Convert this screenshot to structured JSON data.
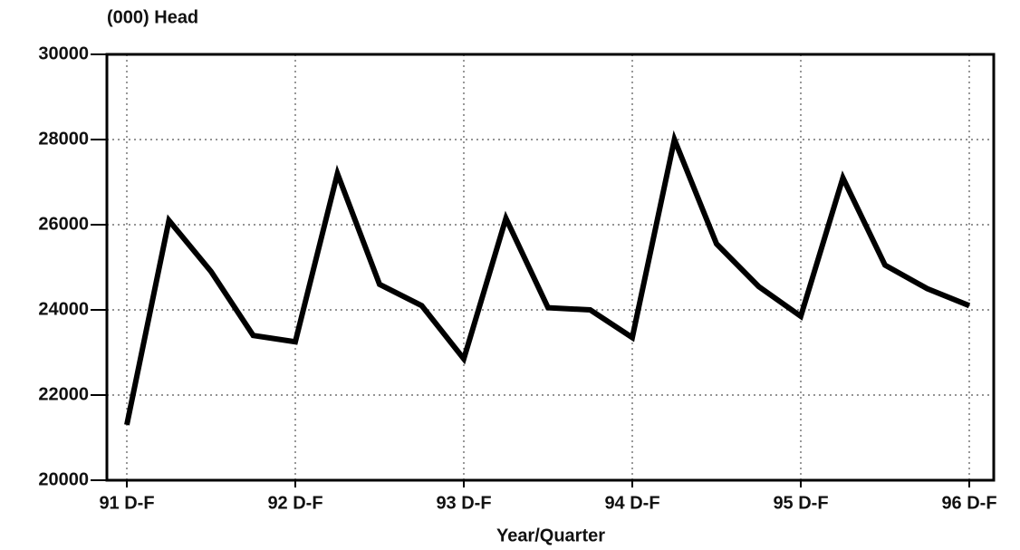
{
  "chart_data": {
    "type": "line",
    "y_label": "(000) Head",
    "x_label": "Year/Quarter",
    "categories": [
      "91 D-F",
      null,
      null,
      null,
      "92 D-F",
      null,
      null,
      null,
      "93 D-F",
      null,
      null,
      null,
      "94 D-F",
      null,
      null,
      null,
      "95 D-F",
      null,
      null,
      null,
      "96 D-F"
    ],
    "series": [
      {
        "name": "Head",
        "color": "#000000",
        "values": [
          21300,
          26100,
          24900,
          23400,
          23250,
          27200,
          24600,
          24100,
          22850,
          26150,
          24050,
          24000,
          23350,
          28000,
          25550,
          24550,
          23850,
          27100,
          25050,
          24500,
          24100
        ]
      }
    ],
    "ylim": [
      20000,
      30000
    ],
    "yticks": [
      20000,
      22000,
      24000,
      26000,
      28000,
      30000
    ],
    "grid": true
  }
}
